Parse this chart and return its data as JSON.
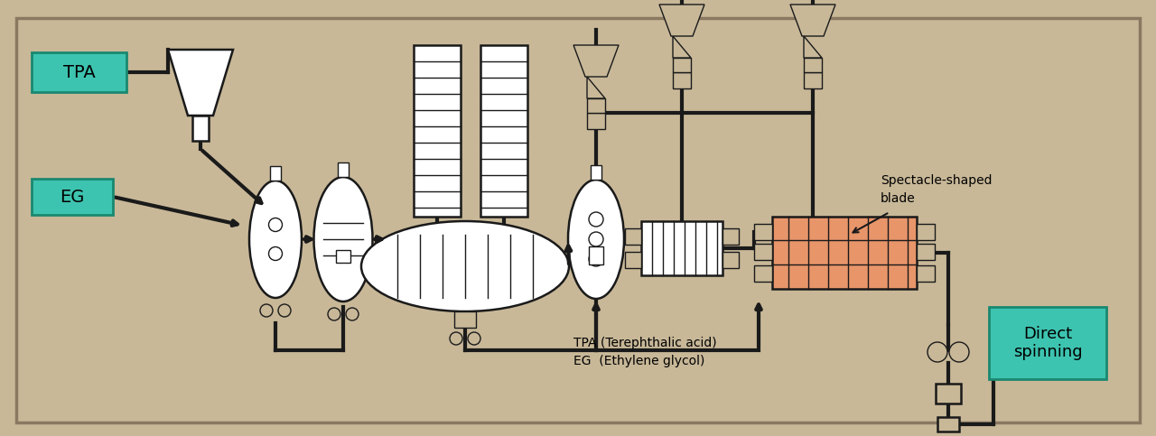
{
  "bg_color": "#c8b898",
  "line_color": "#1a1a1a",
  "teal_color": "#3dc4b0",
  "white_fill": "#ffffff",
  "orange_fill": "#e8956a",
  "label_tpa": "TPA",
  "label_eg": "EG",
  "label_direct": "Direct\nspinning",
  "label_spectacle": "Spectacle-shaped\nblade",
  "label_legend1": "TPA (Terephthalic acid)",
  "label_legend2": "EG  (Ethylene glycol)",
  "fig_width": 12.8,
  "fig_height": 4.83,
  "dpi": 100
}
